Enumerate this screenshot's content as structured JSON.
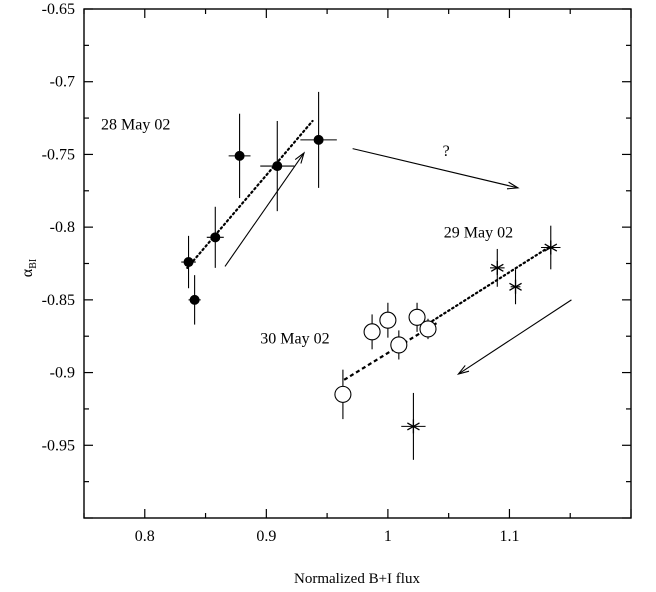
{
  "chart_data": {
    "type": "scatter",
    "title": "",
    "xlabel": "Normalized B+I flux",
    "ylabel_main": "α",
    "ylabel_sub": "BI",
    "xlim": [
      0.75,
      1.2
    ],
    "ylim": [
      -1.0,
      -0.65
    ],
    "x_ticks": [
      0.8,
      0.9,
      1,
      1.1
    ],
    "x_tick_labels": [
      "0.8",
      "0.9",
      "1",
      "1.1"
    ],
    "y_ticks": [
      -0.65,
      -0.7,
      -0.75,
      -0.8,
      -0.85,
      -0.9,
      -0.95
    ],
    "y_tick_labels": [
      "-0.65",
      "-0.7",
      "-0.75",
      "-0.8",
      "-0.85",
      "-0.9",
      "-0.95"
    ],
    "grid": false,
    "series": [
      {
        "name": "28 May 02",
        "marker": "filled-circle",
        "points": [
          {
            "x": 0.836,
            "y": -0.824,
            "xerr": 0.006,
            "yerr": 0.018
          },
          {
            "x": 0.841,
            "y": -0.85,
            "xerr": 0.005,
            "yerr": 0.017
          },
          {
            "x": 0.858,
            "y": -0.807,
            "xerr": 0.007,
            "yerr": 0.021
          },
          {
            "x": 0.878,
            "y": -0.751,
            "xerr": 0.009,
            "yerr": 0.029
          },
          {
            "x": 0.909,
            "y": -0.758,
            "xerr": 0.014,
            "yerr": 0.031
          },
          {
            "x": 0.943,
            "y": -0.74,
            "xerr": 0.015,
            "yerr": 0.033
          }
        ],
        "fit": {
          "x": [
            0.835,
            0.938
          ],
          "y": [
            -0.828,
            -0.727
          ],
          "style": "dotted"
        }
      },
      {
        "name": "29 May 02",
        "marker": "asterisk",
        "points": [
          {
            "x": 1.09,
            "y": -0.828,
            "xerr": 0.006,
            "yerr": 0.013
          },
          {
            "x": 1.105,
            "y": -0.841,
            "xerr": 0.004,
            "yerr": 0.012
          },
          {
            "x": 1.134,
            "y": -0.814,
            "xerr": 0.008,
            "yerr": 0.015
          },
          {
            "x": 1.021,
            "y": -0.937,
            "xerr": 0.01,
            "yerr": 0.023
          }
        ],
        "fit": {
          "x": [
            1.03,
            1.134
          ],
          "y": [
            -0.868,
            -0.813
          ],
          "style": "dotted"
        }
      },
      {
        "name": "30 May 02",
        "marker": "open-circle",
        "points": [
          {
            "x": 0.963,
            "y": -0.915,
            "xerr": 0.006,
            "yerr": 0.017
          },
          {
            "x": 0.987,
            "y": -0.872,
            "xerr": 0.006,
            "yerr": 0.012
          },
          {
            "x": 1.0,
            "y": -0.864,
            "xerr": 0.006,
            "yerr": 0.012
          },
          {
            "x": 1.009,
            "y": -0.881,
            "xerr": 0.006,
            "yerr": 0.01
          },
          {
            "x": 1.024,
            "y": -0.862,
            "xerr": 0.006,
            "yerr": 0.01
          },
          {
            "x": 1.033,
            "y": -0.87,
            "xerr": 0.005,
            "yerr": 0.007
          }
        ],
        "fit": {
          "x": [
            0.964,
            1.04
          ],
          "y": [
            -0.905,
            -0.866
          ],
          "style": "dashed"
        }
      }
    ],
    "annotations": [
      {
        "text": "28 May 02",
        "x": 0.764,
        "y": -0.733
      },
      {
        "text": "29 May 02",
        "x": 1.046,
        "y": -0.807
      },
      {
        "text": "30 May 02",
        "x": 0.895,
        "y": -0.88
      },
      {
        "text": "?",
        "x": 1.045,
        "y": -0.751
      }
    ],
    "arrows": [
      {
        "from": [
          0.866,
          -0.827
        ],
        "to": [
          0.931,
          -0.749
        ]
      },
      {
        "from": [
          0.971,
          -0.746
        ],
        "to": [
          1.107,
          -0.773
        ]
      },
      {
        "from": [
          1.151,
          -0.85
        ],
        "to": [
          1.058,
          -0.901
        ]
      }
    ]
  }
}
